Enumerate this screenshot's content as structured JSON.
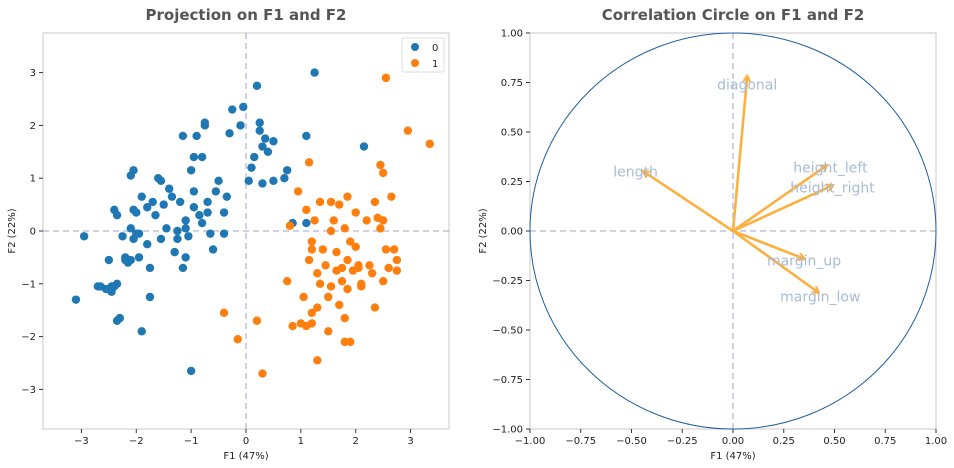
{
  "colors": {
    "class0": "#1f77b4",
    "class1": "#ff7f0e",
    "arrow": "#fbb040",
    "circle": "#1f5e9e",
    "dashed": "#b0b8d4",
    "var_label": "#a9bcd6"
  },
  "chart_data": [
    {
      "type": "scatter",
      "title": "Projection on F1 and F2",
      "xlabel": "F1 (47%)",
      "ylabel": "F2 (22%)",
      "xlim": [
        -3.7,
        3.7
      ],
      "ylim": [
        -3.75,
        3.75
      ],
      "xticks": [
        -3,
        -2,
        -1,
        0,
        1,
        2,
        3
      ],
      "yticks": [
        -3,
        -2,
        -1,
        0,
        1,
        2,
        3
      ],
      "legend_position": "top-right",
      "series": [
        {
          "name": "0",
          "points": [
            [
              -3.1,
              -1.3
            ],
            [
              -2.95,
              -0.1
            ],
            [
              -2.7,
              -1.05
            ],
            [
              -2.65,
              -1.05
            ],
            [
              -2.55,
              -1.1
            ],
            [
              -2.45,
              -1.15
            ],
            [
              -2.45,
              -1.05
            ],
            [
              -2.4,
              -1.05
            ],
            [
              -2.35,
              -1.0
            ],
            [
              -2.35,
              -1.7
            ],
            [
              -2.3,
              -1.65
            ],
            [
              -2.5,
              -0.55
            ],
            [
              -2.4,
              0.4
            ],
            [
              -2.35,
              0.3
            ],
            [
              -2.25,
              -0.1
            ],
            [
              -2.2,
              -0.5
            ],
            [
              -2.2,
              -0.55
            ],
            [
              -2.15,
              -0.6
            ],
            [
              -2.1,
              0.05
            ],
            [
              -2.1,
              -0.55
            ],
            [
              -2.05,
              -0.15
            ],
            [
              -2.05,
              0.4
            ],
            [
              -2.0,
              -0.05
            ],
            [
              -1.95,
              -0.5
            ],
            [
              -1.95,
              -0.05
            ],
            [
              -2.1,
              1.05
            ],
            [
              -2.05,
              1.15
            ],
            [
              -2.0,
              0.35
            ],
            [
              -1.9,
              0.65
            ],
            [
              -1.9,
              -1.9
            ],
            [
              -1.8,
              0.45
            ],
            [
              -1.8,
              -0.25
            ],
            [
              -1.75,
              -0.7
            ],
            [
              -1.75,
              -1.25
            ],
            [
              -1.7,
              0.55
            ],
            [
              -1.65,
              0.3
            ],
            [
              -1.6,
              1.0
            ],
            [
              -1.55,
              0.95
            ],
            [
              -1.55,
              -0.15
            ],
            [
              -1.5,
              0.5
            ],
            [
              -1.45,
              0.05
            ],
            [
              -1.4,
              0.8
            ],
            [
              -1.35,
              0.65
            ],
            [
              -1.3,
              -0.4
            ],
            [
              -1.25,
              0.0
            ],
            [
              -1.25,
              -0.15
            ],
            [
              -1.2,
              0.55
            ],
            [
              -1.15,
              -0.7
            ],
            [
              -1.1,
              0.2
            ],
            [
              -1.1,
              0.05
            ],
            [
              -1.1,
              -0.5
            ],
            [
              -1.15,
              1.8
            ],
            [
              -1.05,
              -0.1
            ],
            [
              -1.0,
              1.15
            ],
            [
              -0.95,
              1.4
            ],
            [
              -0.95,
              0.75
            ],
            [
              -0.95,
              0.45
            ],
            [
              -0.9,
              1.8
            ],
            [
              -0.85,
              0.3
            ],
            [
              -0.8,
              0.15
            ],
            [
              -0.8,
              1.4
            ],
            [
              -0.75,
              2.05
            ],
            [
              -0.75,
              2.0
            ],
            [
              -0.7,
              0.35
            ],
            [
              -0.7,
              0.55
            ],
            [
              -0.65,
              -0.05
            ],
            [
              -0.6,
              -0.35
            ],
            [
              -1.0,
              -2.65
            ],
            [
              -0.55,
              0.75
            ],
            [
              -0.5,
              0.95
            ],
            [
              -0.4,
              0.35
            ],
            [
              -0.4,
              -0.05
            ],
            [
              -0.35,
              0.65
            ],
            [
              -0.3,
              1.85
            ],
            [
              -0.25,
              2.3
            ],
            [
              -0.1,
              2.0
            ],
            [
              -0.05,
              2.35
            ],
            [
              0.05,
              0.95
            ],
            [
              0.1,
              1.2
            ],
            [
              0.15,
              1.4
            ],
            [
              0.2,
              2.75
            ],
            [
              0.25,
              1.9
            ],
            [
              0.25,
              2.05
            ],
            [
              0.3,
              1.6
            ],
            [
              0.3,
              0.9
            ],
            [
              0.35,
              1.75
            ],
            [
              0.4,
              1.5
            ],
            [
              0.5,
              0.95
            ],
            [
              0.5,
              1.7
            ],
            [
              0.7,
              1.0
            ],
            [
              0.75,
              1.15
            ],
            [
              0.85,
              0.15
            ],
            [
              1.1,
              1.8
            ],
            [
              1.1,
              0.15
            ],
            [
              1.25,
              3.0
            ],
            [
              2.15,
              1.6
            ]
          ]
        },
        {
          "name": "1",
          "points": [
            [
              -0.4,
              -1.55
            ],
            [
              -0.15,
              -2.05
            ],
            [
              0.2,
              -1.7
            ],
            [
              0.3,
              -2.7
            ],
            [
              0.75,
              -0.95
            ],
            [
              0.8,
              0.1
            ],
            [
              0.85,
              -1.8
            ],
            [
              0.95,
              0.75
            ],
            [
              1.0,
              -1.75
            ],
            [
              1.05,
              -1.25
            ],
            [
              1.1,
              -1.8
            ],
            [
              1.1,
              0.4
            ],
            [
              1.15,
              1.3
            ],
            [
              1.15,
              -0.55
            ],
            [
              1.2,
              -1.75
            ],
            [
              1.2,
              -0.35
            ],
            [
              1.2,
              -0.2
            ],
            [
              1.2,
              -1.55
            ],
            [
              1.25,
              0.2
            ],
            [
              1.3,
              -2.45
            ],
            [
              1.3,
              -0.8
            ],
            [
              1.3,
              -1.45
            ],
            [
              1.35,
              0.55
            ],
            [
              1.35,
              -1.0
            ],
            [
              1.4,
              -0.35
            ],
            [
              1.45,
              -0.65
            ],
            [
              1.5,
              -1.25
            ],
            [
              1.5,
              -1.9
            ],
            [
              1.55,
              0.55
            ],
            [
              1.55,
              -1.05
            ],
            [
              1.55,
              0.0
            ],
            [
              1.6,
              0.2
            ],
            [
              1.65,
              -0.4
            ],
            [
              1.65,
              -0.75
            ],
            [
              1.7,
              0.5
            ],
            [
              1.7,
              -1.4
            ],
            [
              1.75,
              -0.7
            ],
            [
              1.75,
              -0.95
            ],
            [
              1.8,
              -2.1
            ],
            [
              1.8,
              0.05
            ],
            [
              1.8,
              -1.65
            ],
            [
              1.85,
              -1.1
            ],
            [
              1.85,
              0.65
            ],
            [
              1.85,
              -0.55
            ],
            [
              1.9,
              -2.1
            ],
            [
              1.9,
              -0.2
            ],
            [
              1.95,
              -0.75
            ],
            [
              2.0,
              -0.3
            ],
            [
              2.0,
              0.35
            ],
            [
              2.05,
              -0.65
            ],
            [
              2.05,
              -0.7
            ],
            [
              2.1,
              -1.0
            ],
            [
              2.1,
              -1.05
            ],
            [
              2.2,
              0.2
            ],
            [
              2.25,
              -0.65
            ],
            [
              2.3,
              -0.8
            ],
            [
              2.35,
              -1.45
            ],
            [
              2.35,
              0.55
            ],
            [
              2.4,
              0.25
            ],
            [
              2.45,
              1.25
            ],
            [
              2.45,
              0.05
            ],
            [
              2.5,
              0.2
            ],
            [
              2.5,
              1.1
            ],
            [
              2.5,
              -0.95
            ],
            [
              2.55,
              2.9
            ],
            [
              2.55,
              -0.35
            ],
            [
              2.6,
              -0.7
            ],
            [
              2.65,
              0.65
            ],
            [
              2.7,
              -0.35
            ],
            [
              2.75,
              -0.55
            ],
            [
              2.75,
              -0.75
            ],
            [
              2.95,
              1.9
            ],
            [
              3.35,
              1.65
            ]
          ]
        }
      ]
    },
    {
      "type": "vector",
      "title": "Correlation Circle on F1 and F2",
      "xlabel": "F1 (47%)",
      "ylabel": "F2 (22%)",
      "xlim": [
        -1.0,
        1.0
      ],
      "ylim": [
        -1.0,
        1.0
      ],
      "xticks": [
        "−1.00",
        "−0.75",
        "−0.50",
        "−0.25",
        "0.00",
        "0.25",
        "0.50",
        "0.75",
        "1.00"
      ],
      "xtick_values": [
        -1.0,
        -0.75,
        -0.5,
        -0.25,
        0.0,
        0.25,
        0.5,
        0.75,
        1.0
      ],
      "yticks": [
        "−1.00",
        "−0.75",
        "−0.50",
        "−0.25",
        "0.00",
        "0.25",
        "0.50",
        "0.75",
        "1.00"
      ],
      "ytick_values": [
        -1.0,
        -0.75,
        -0.5,
        -0.25,
        0.0,
        0.25,
        0.5,
        0.75,
        1.0
      ],
      "circle_radius": 1.0,
      "vectors": [
        {
          "name": "diagonal",
          "x": 0.07,
          "y": 0.78,
          "label_x": 0.07,
          "label_y": 0.74
        },
        {
          "name": "length",
          "x": -0.44,
          "y": 0.3,
          "label_x": -0.48,
          "label_y": 0.3
        },
        {
          "name": "height_left",
          "x": 0.46,
          "y": 0.33,
          "label_x": 0.48,
          "label_y": 0.32
        },
        {
          "name": "height_right",
          "x": 0.49,
          "y": 0.23,
          "label_x": 0.49,
          "label_y": 0.22
        },
        {
          "name": "margin_up",
          "x": 0.35,
          "y": -0.14,
          "label_x": 0.35,
          "label_y": -0.15
        },
        {
          "name": "margin_low",
          "x": 0.42,
          "y": -0.31,
          "label_x": 0.43,
          "label_y": -0.33
        }
      ]
    }
  ]
}
